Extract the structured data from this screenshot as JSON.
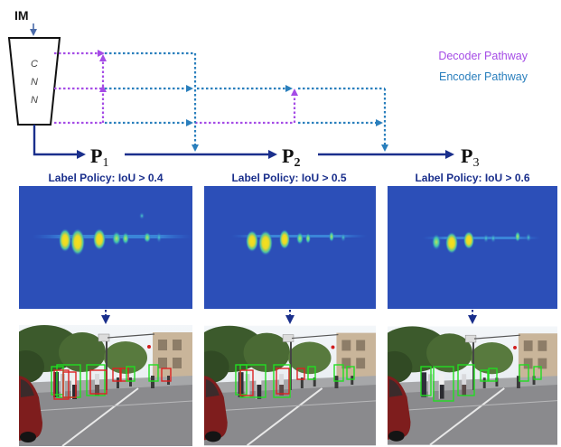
{
  "input": {
    "label": "IM"
  },
  "backbone": {
    "letters": [
      "C",
      "N",
      "N"
    ]
  },
  "legend": {
    "decoder": {
      "label": "Decoder Pathway",
      "color": "#a54ce6"
    },
    "encoder": {
      "label": "Encoder Pathway",
      "color": "#2a7fbd"
    }
  },
  "main_path_color": "#1a2f8c",
  "stages": [
    {
      "name": "P",
      "sub": "1",
      "policy": "Label Policy:  IoU > 0.4"
    },
    {
      "name": "P",
      "sub": "2",
      "policy": "Label Policy:  IoU > 0.5"
    },
    {
      "name": "P",
      "sub": "3",
      "policy": "Label Policy:  IoU > 0.6"
    }
  ],
  "box_colors": {
    "positive": "#22dd22",
    "negative": "#dd2222"
  }
}
